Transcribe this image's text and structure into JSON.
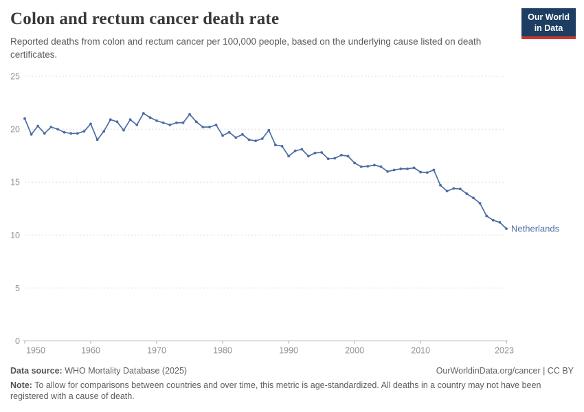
{
  "header": {
    "title": "Colon and rectum cancer death rate",
    "subtitle": "Reported deaths from colon and rectum cancer per 100,000 people, based on the underlying cause listed on death certificates.",
    "logo": {
      "line1": "Our World",
      "line2": "in Data"
    }
  },
  "chart_data": {
    "type": "line",
    "title": "Colon and rectum cancer death rate",
    "series": [
      {
        "name": "Netherlands",
        "x": [
          1950,
          1951,
          1952,
          1953,
          1954,
          1955,
          1956,
          1957,
          1958,
          1959,
          1960,
          1961,
          1962,
          1963,
          1964,
          1965,
          1966,
          1967,
          1968,
          1969,
          1970,
          1971,
          1972,
          1973,
          1974,
          1975,
          1976,
          1977,
          1978,
          1979,
          1980,
          1981,
          1982,
          1983,
          1984,
          1985,
          1986,
          1987,
          1988,
          1989,
          1990,
          1991,
          1992,
          1993,
          1994,
          1995,
          1996,
          1997,
          1998,
          1999,
          2000,
          2001,
          2002,
          2003,
          2004,
          2005,
          2006,
          2007,
          2008,
          2009,
          2010,
          2011,
          2012,
          2013,
          2014,
          2015,
          2016,
          2017,
          2018,
          2019,
          2020,
          2021,
          2022,
          2023
        ],
        "values": [
          21.0,
          19.5,
          20.3,
          19.6,
          20.2,
          20.0,
          19.7,
          19.6,
          19.6,
          19.8,
          20.5,
          19.0,
          19.8,
          20.9,
          20.7,
          19.9,
          20.9,
          20.4,
          21.5,
          21.1,
          20.8,
          20.6,
          20.4,
          20.6,
          20.6,
          21.4,
          20.7,
          20.2,
          20.2,
          20.4,
          19.4,
          19.7,
          19.2,
          19.5,
          19.0,
          18.9,
          19.1,
          19.9,
          18.5,
          18.4,
          17.45,
          17.95,
          18.1,
          17.45,
          17.75,
          17.8,
          17.2,
          17.25,
          17.55,
          17.45,
          16.8,
          16.45,
          16.5,
          16.6,
          16.45,
          16.0,
          16.15,
          16.25,
          16.25,
          16.35,
          15.95,
          15.9,
          16.15,
          14.7,
          14.15,
          14.4,
          14.35,
          13.9,
          13.5,
          13.0,
          11.8,
          11.4,
          11.2,
          10.6
        ]
      }
    ],
    "xlabel": "",
    "ylabel": "",
    "xticks": [
      1950,
      1960,
      1970,
      1980,
      1990,
      2000,
      2010,
      2023
    ],
    "yticks": [
      0,
      5,
      10,
      15,
      20,
      25
    ],
    "xlim": [
      1950,
      2023
    ],
    "ylim": [
      0,
      25
    ],
    "grid": "dashed-horizontal",
    "legend_position": "end-of-line",
    "line_color": "#4c6ca5",
    "tick_color": "#939393"
  },
  "footer": {
    "datasource_label": "Data source:",
    "datasource_value": "WHO Mortality Database (2025)",
    "attribution": "OurWorldinData.org/cancer | CC BY",
    "note_label": "Note:",
    "note_text": "To allow for comparisons between countries and over time, this metric is age-standardized. All deaths in a country may not have been registered with a cause of death."
  }
}
